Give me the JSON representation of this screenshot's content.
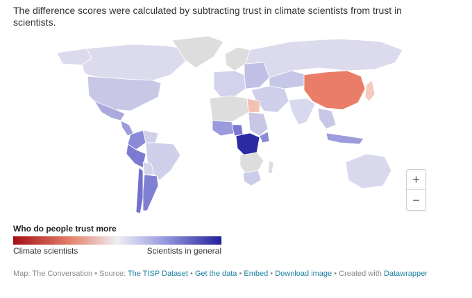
{
  "intro": "The difference scores were calculated by subtracting trust in climate scientists from trust in scientists.",
  "legend": {
    "title": "Who do people trust more",
    "left_label": "Climate scientists",
    "right_label": "Scientists in general",
    "colors": [
      "#a50f15",
      "#e5846c",
      "#efeef4",
      "#9a9ce0",
      "#24209c"
    ]
  },
  "zoom": {
    "in_label": "+",
    "out_label": "−"
  },
  "footer": {
    "prefix": "Map: The Conversation • Source: ",
    "source_link": "The TISP Dataset",
    "sep1": " • ",
    "get_data": "Get the data",
    "sep2": " • ",
    "embed": "Embed",
    "sep3": " • ",
    "download": "Download image",
    "sep4": " • Created with ",
    "created_with": "Datawrapper"
  },
  "map": {
    "no_data_color": "#dddddd",
    "regions": [
      {
        "name": "Canada",
        "color": "#dcdbed"
      },
      {
        "name": "Alaska",
        "color": "#dcdbed"
      },
      {
        "name": "United States",
        "color": "#c8c8e6"
      },
      {
        "name": "Greenland",
        "color": "#dddddd"
      },
      {
        "name": "Mexico",
        "color": "#aaaade"
      },
      {
        "name": "Central America",
        "color": "#9c9cdc"
      },
      {
        "name": "Colombia",
        "color": "#8a8ad8"
      },
      {
        "name": "Venezuela",
        "color": "#d0d0ea"
      },
      {
        "name": "Brazil",
        "color": "#cfcfe9"
      },
      {
        "name": "Peru",
        "color": "#7a7ad2"
      },
      {
        "name": "Bolivia",
        "color": "#d3d3ec"
      },
      {
        "name": "Chile",
        "color": "#7070cd"
      },
      {
        "name": "Argentina",
        "color": "#8080d3"
      },
      {
        "name": "Russia",
        "color": "#dcdbed"
      },
      {
        "name": "Western Europe",
        "color": "#d2d2ec"
      },
      {
        "name": "Scandinavia",
        "color": "#dddddd"
      },
      {
        "name": "Eastern Europe",
        "color": "#c0c0e6"
      },
      {
        "name": "Middle East",
        "color": "#d0d0ea"
      },
      {
        "name": "Kazakhstan",
        "color": "#c6c6e6"
      },
      {
        "name": "China",
        "color": "#ea7d67"
      },
      {
        "name": "India",
        "color": "#d8d8ee"
      },
      {
        "name": "Southeast Asia",
        "color": "#c8c8e6"
      },
      {
        "name": "Japan",
        "color": "#f6c8c0"
      },
      {
        "name": "Indonesia",
        "color": "#9c9cdc"
      },
      {
        "name": "Australia",
        "color": "#d9d9ee"
      },
      {
        "name": "North Africa",
        "color": "#dddddd"
      },
      {
        "name": "Egypt",
        "color": "#f3c0b4"
      },
      {
        "name": "West Africa",
        "color": "#9a9adc"
      },
      {
        "name": "Nigeria",
        "color": "#7878d0"
      },
      {
        "name": "DR Congo",
        "color": "#2a2aa3"
      },
      {
        "name": "East Africa",
        "color": "#c8c8e6"
      },
      {
        "name": "Kenya",
        "color": "#8a8ad8"
      },
      {
        "name": "Southern Africa",
        "color": "#dddddd"
      },
      {
        "name": "South Africa",
        "color": "#cbcbea"
      },
      {
        "name": "Madagascar",
        "color": "#dddddd"
      }
    ]
  }
}
